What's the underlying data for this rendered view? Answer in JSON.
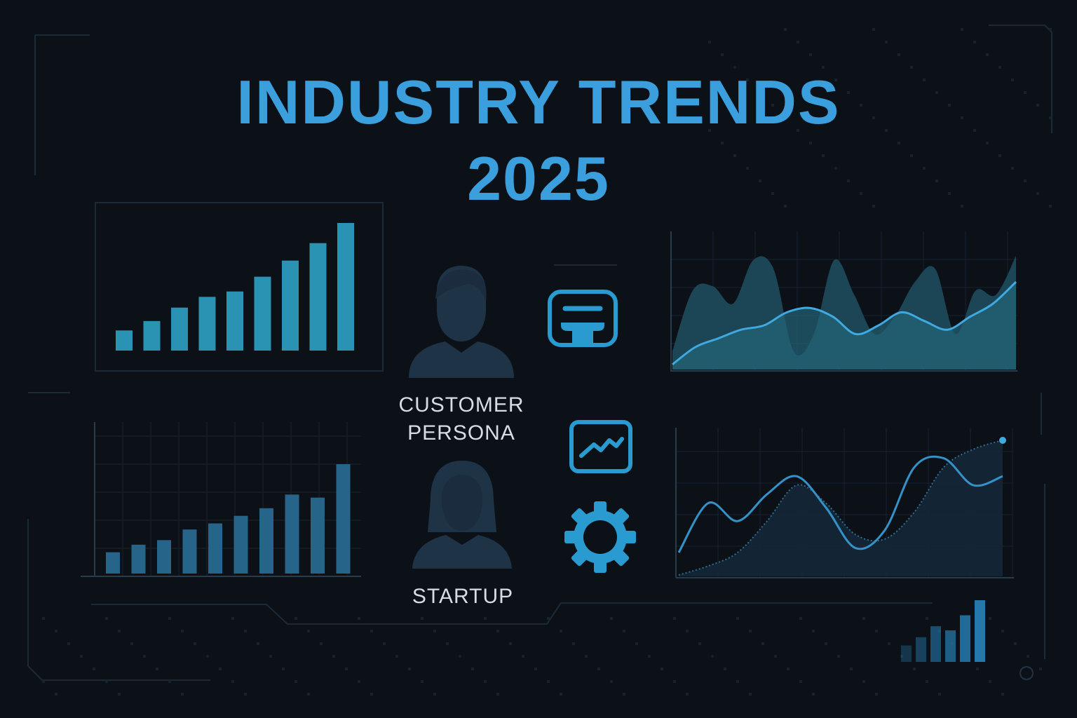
{
  "title": {
    "line1": "INDUSTRY TRENDS",
    "line2": "2025"
  },
  "labels": {
    "persona_line1": "CUSTOMER",
    "persona_line2": "PERSONA",
    "startup": "STARTUP"
  },
  "icons": {
    "male_user": "user-male-icon",
    "female_user": "user-female-icon",
    "chat": "chat-bubble-icon",
    "trend": "trend-line-icon",
    "gear": "gear-icon"
  },
  "colors": {
    "background": "#0c1117",
    "title": "#3a9fdc",
    "accent": "#2a9bd1",
    "bar_top_left": "#2a93b4",
    "bar_bottom_left": "#27648a",
    "area_fill": "#1f5668",
    "line": "#3fa9e0",
    "persona_icon": "#1f3347",
    "label": "#d6dde4"
  },
  "chart_data": [
    {
      "type": "bar",
      "values": [
        15,
        22,
        32,
        40,
        44,
        55,
        67,
        80,
        95
      ]
    },
    {
      "type": "bar",
      "values": [
        14,
        19,
        22,
        29,
        33,
        38,
        43,
        52,
        50,
        72
      ]
    },
    {
      "type": "area",
      "series": [
        {
          "values": [
            4,
            18,
            19,
            15,
            25,
            23,
            4,
            8,
            25,
            17,
            8,
            12,
            20,
            23,
            8,
            18,
            17,
            26
          ]
        },
        {
          "values": [
            1,
            5,
            7,
            9,
            10,
            13,
            14,
            12,
            8,
            10,
            13,
            11,
            9,
            12,
            15,
            20
          ]
        }
      ]
    },
    {
      "type": "line",
      "series": [
        {
          "values": [
            5,
            16,
            12,
            18,
            22,
            15,
            6,
            10,
            24,
            26,
            20,
            22
          ]
        },
        {
          "values": [
            0,
            2,
            5,
            12,
            20,
            16,
            9,
            8,
            14,
            24,
            28,
            30
          ]
        }
      ]
    },
    {
      "type": "bar",
      "values": [
        12,
        18,
        26,
        23,
        34,
        45
      ]
    }
  ]
}
